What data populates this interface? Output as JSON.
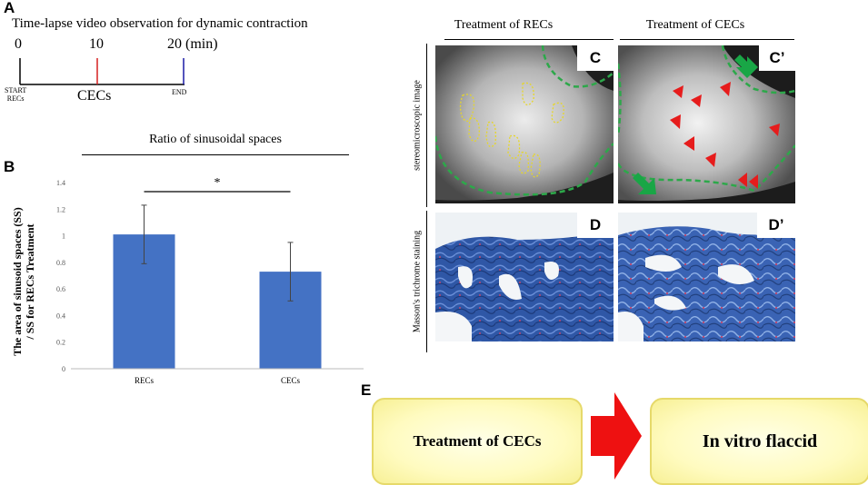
{
  "panel_letters": {
    "a": "A",
    "b": "B",
    "e": "E"
  },
  "timeline": {
    "title": "Time-lapse video observation for dynamic contraction",
    "ticks": [
      {
        "time": 0,
        "label": "0",
        "color": "#000000"
      },
      {
        "time": 10,
        "label": "10",
        "color": "#d62020"
      },
      {
        "time": 20,
        "label": "20 (min)",
        "color": "#1a1aa6"
      }
    ],
    "start_label_1": "START",
    "start_label_2": "RECs",
    "mid_label": "CECs",
    "end_label": "END"
  },
  "bar_chart": {
    "significance_marker": "*",
    "bar_color": "#4472c4"
  },
  "chart_data": {
    "type": "bar",
    "title": "Ratio of sinusoidal spaces",
    "ylabel_line1": "The area of  sinusoid spaces (SS)",
    "ylabel_line2": "/ SS for RECs Treatment",
    "xlabel": "",
    "categories": [
      "RECs",
      "CECs"
    ],
    "values": [
      1.01,
      0.73
    ],
    "error": [
      0.22,
      0.22
    ],
    "ylim": [
      0,
      1.4
    ],
    "yticks": [
      0,
      0.2,
      0.4,
      0.6,
      0.8,
      1,
      1.2,
      1.4
    ],
    "ytick_labels": [
      "0",
      "0.2",
      "0.4",
      "0.6",
      "0.8",
      "1",
      "1.2",
      "1.4"
    ]
  },
  "images": {
    "col1_header": "Treatment of RECs",
    "col2_header": "Treatment of CECs",
    "row1_side_label": "stereomicroscopic image",
    "row2_side_label": "Masson's trichrome staining",
    "label_c": "C",
    "label_c_prime": "C’",
    "label_d": "D",
    "label_d_prime": "D’"
  },
  "flow": {
    "box1": "Treatment of CECs",
    "box2": "In vitro flaccid",
    "arrow_color": "#ee1111"
  }
}
